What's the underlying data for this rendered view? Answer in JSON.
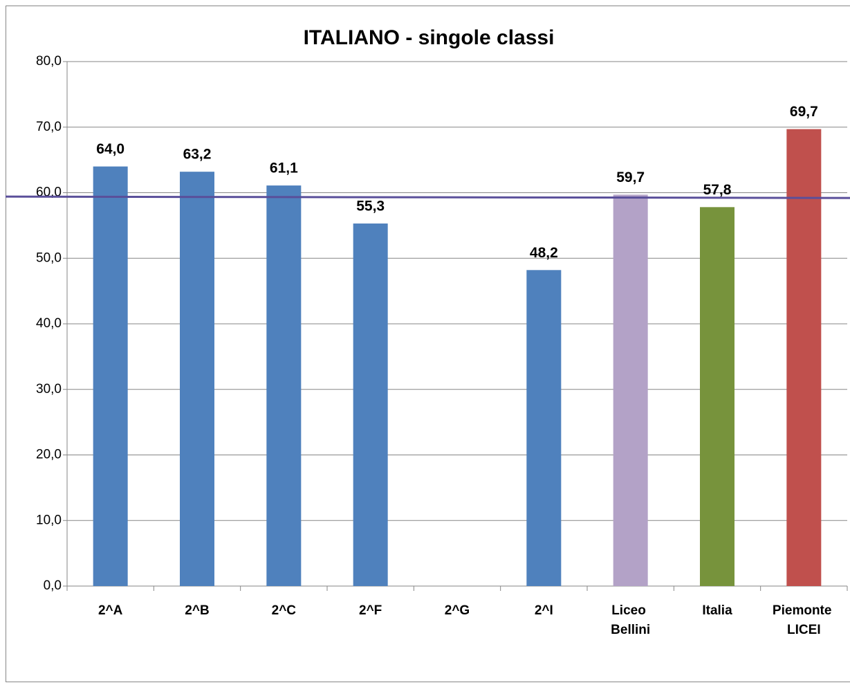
{
  "chart_data": {
    "type": "bar",
    "title": "ITALIANO - singole classi",
    "categories": [
      "2^A",
      "2^B",
      "2^C",
      "2^F",
      "2^G",
      "2^I",
      "Liceo Bellini",
      "Italia",
      "Piemonte LICEI"
    ],
    "values": [
      64.0,
      63.2,
      61.1,
      55.3,
      null,
      48.2,
      59.7,
      57.8,
      69.7
    ],
    "value_labels": [
      "64,0",
      "63,2",
      "61,1",
      "55,3",
      null,
      "48,2",
      "59,7",
      "57,8",
      "69,7"
    ],
    "colors": [
      "#4f81bd",
      "#4f81bd",
      "#4f81bd",
      "#4f81bd",
      "#4f81bd",
      "#4f81bd",
      "#b3a2c7",
      "#77933c",
      "#c0504d"
    ],
    "ylim": [
      0,
      80
    ],
    "yticks": [
      {
        "value": 0,
        "label": "0,0"
      },
      {
        "value": 10,
        "label": "10,0"
      },
      {
        "value": 20,
        "label": "20,0"
      },
      {
        "value": 30,
        "label": "30,0"
      },
      {
        "value": 40,
        "label": "40,0"
      },
      {
        "value": 50,
        "label": "50,0"
      },
      {
        "value": 60,
        "label": "60,0"
      },
      {
        "value": 70,
        "label": "70,0"
      },
      {
        "value": 80,
        "label": "80,0"
      }
    ],
    "grid": true,
    "reference_line": {
      "values": [
        59.4,
        59.2
      ],
      "color": "#5a4f9a"
    }
  }
}
